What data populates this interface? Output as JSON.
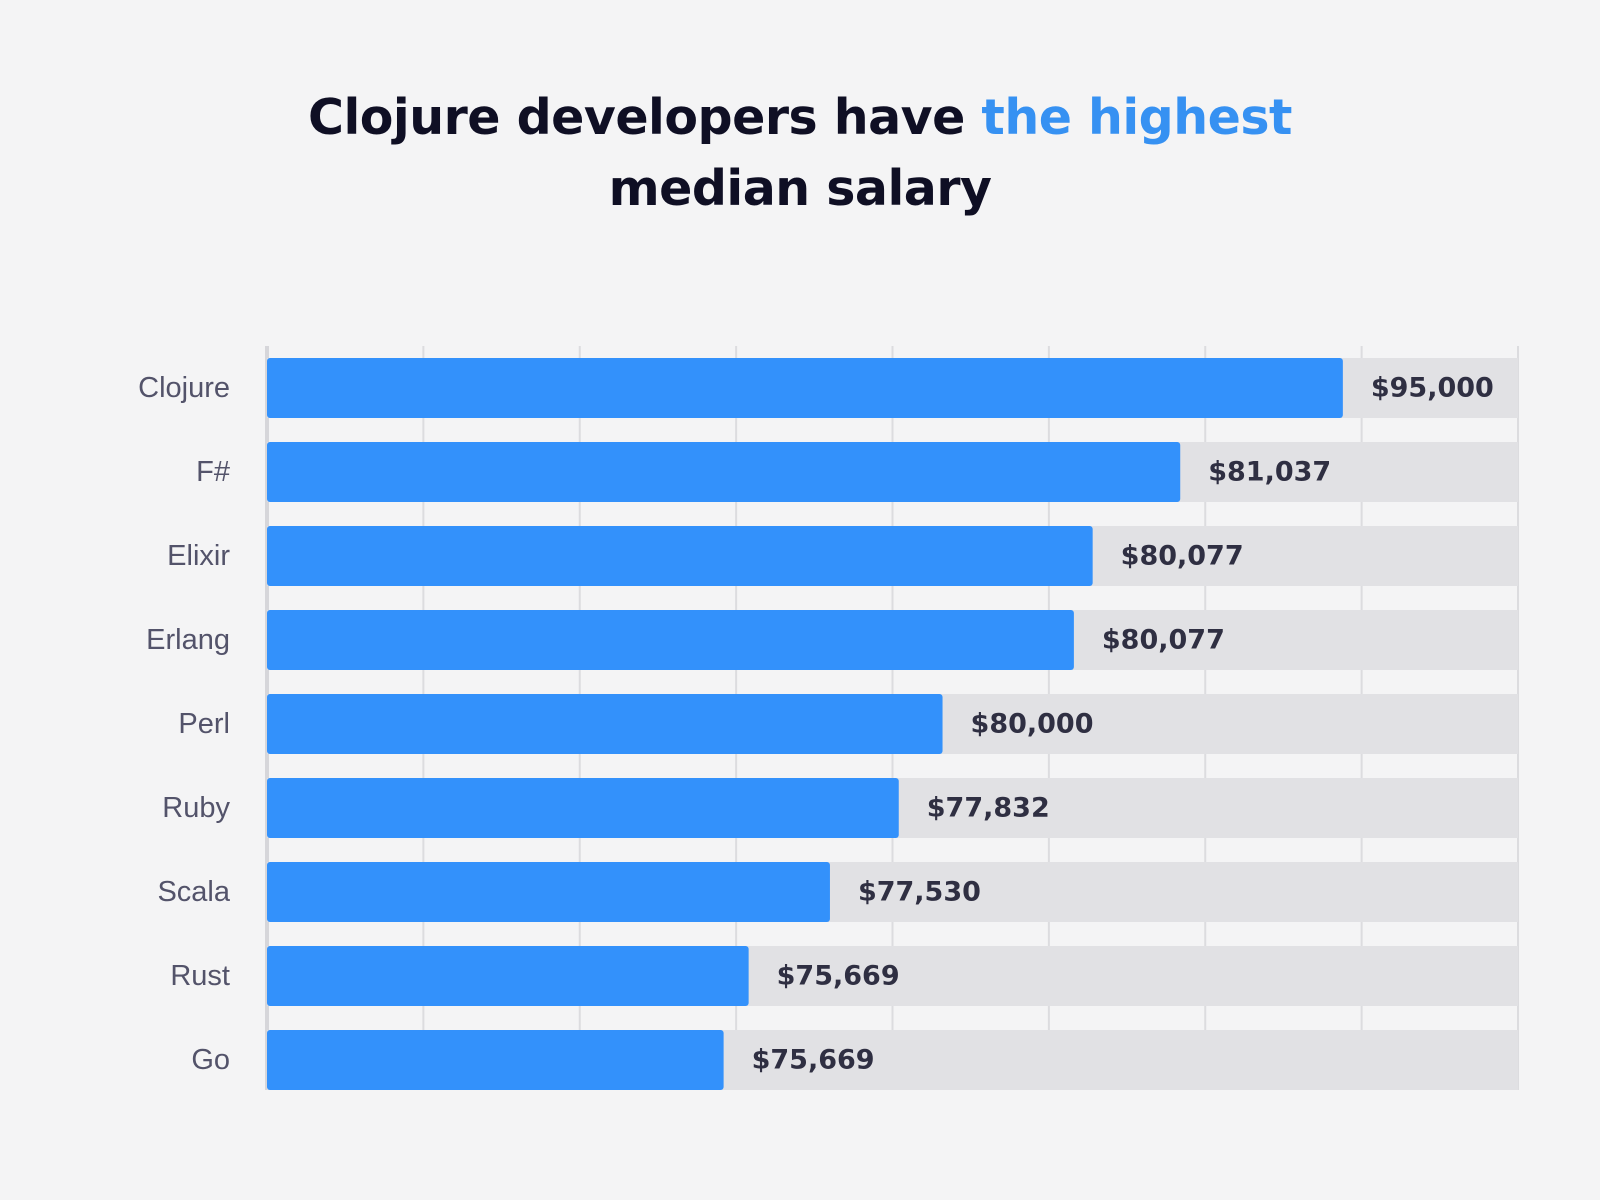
{
  "title": {
    "part1": "Clojure developers have ",
    "highlight": "the highest",
    "part2": "median salary"
  },
  "colors": {
    "bar": "#3391fb",
    "track": "#e1e1e4",
    "grid": "#dcdcdf",
    "accent": "#3691f2",
    "title": "#0f0f24"
  },
  "chart_data": {
    "type": "bar",
    "orientation": "horizontal",
    "title": "Clojure developers have the highest median salary",
    "categories": [
      "Clojure",
      "F#",
      "Elixir",
      "Erlang",
      "Perl",
      "Ruby",
      "Scala",
      "Rust",
      "Go"
    ],
    "values": [
      95000,
      81037,
      80077,
      80077,
      80000,
      77832,
      77530,
      75669,
      75669
    ],
    "value_labels": [
      "$95,000",
      "$81,037",
      "$80,077",
      "$80,077",
      "$80,000",
      "$77,832",
      "$77,530",
      "$75,669",
      "$75,669"
    ],
    "bar_fill_fraction": [
      0.86,
      0.73,
      0.66,
      0.645,
      0.54,
      0.505,
      0.45,
      0.385,
      0.365
    ],
    "xlabel": "",
    "ylabel": "",
    "grid": true,
    "gridline_count": 8
  }
}
